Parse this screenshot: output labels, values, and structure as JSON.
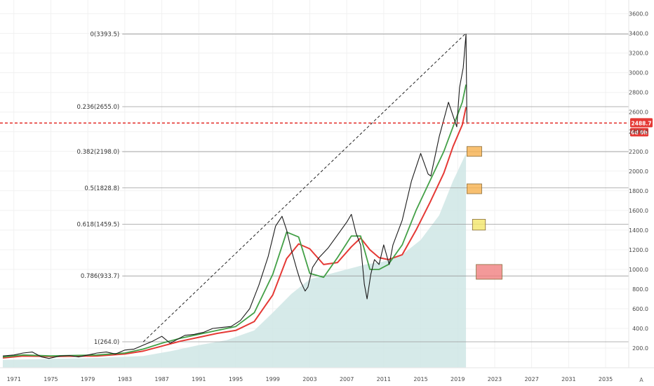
{
  "chart_data": {
    "type": "line",
    "x_axis": {
      "ticks": [
        "1971",
        "1975",
        "1979",
        "1983",
        "1987",
        "1991",
        "1995",
        "1999",
        "2003",
        "2007",
        "2011",
        "2015",
        "2019",
        "2023",
        "2027",
        "2031",
        "2035"
      ],
      "range": [
        1969.5,
        2037.5
      ]
    },
    "y_axis": {
      "ticks": [
        200.0,
        400.0,
        600.0,
        800.0,
        1000.0,
        1200.0,
        1400.0,
        1600.0,
        1800.0,
        2000.0,
        2200.0,
        2400.0,
        2600.0,
        2800.0,
        3000.0,
        3200.0,
        3400.0,
        3600.0
      ],
      "tick_labels": [
        "200.0",
        "400.0",
        "600.0",
        "800.0",
        "1000.0",
        "1200.0",
        "1400.0",
        "1600.0",
        "1800.0",
        "2000.0",
        "2200.0",
        "2400.0",
        "2600.0",
        "2800.0",
        "3000.0",
        "3200.0",
        "3400.0",
        "3600.0"
      ],
      "range": [
        0,
        3740
      ],
      "position": "right",
      "corner_label": "A"
    },
    "grid": true,
    "current_price": {
      "value": 2488.7,
      "label": "2488.7",
      "countdown": "6d 0h",
      "color": "#e53935"
    },
    "fib_levels": [
      {
        "ratio": "0",
        "value": 3393.5,
        "label": "0(3393.5)"
      },
      {
        "ratio": "0.236",
        "value": 2655.0,
        "label": "0.236(2655.0)"
      },
      {
        "ratio": "0.382",
        "value": 2198.0,
        "label": "0.382(2198.0)"
      },
      {
        "ratio": "0.5",
        "value": 1828.8,
        "label": "0.5(1828.8)"
      },
      {
        "ratio": "0.618",
        "value": 1459.5,
        "label": "0.618(1459.5)"
      },
      {
        "ratio": "0.786",
        "value": 933.7,
        "label": "0.786(933.7)"
      },
      {
        "ratio": "1",
        "value": 264.0,
        "label": "1(264.0)"
      }
    ],
    "trendline": {
      "x": [
        1985.0,
        2019.8
      ],
      "y": [
        264.0,
        3393.5
      ]
    },
    "zones": [
      {
        "x": [
          2020.0,
          2021.6
        ],
        "y": [
          2150,
          2250
        ],
        "color": "#f6b04d"
      },
      {
        "x": [
          2020.0,
          2021.6
        ],
        "y": [
          1770,
          1870
        ],
        "color": "#f6b04d"
      },
      {
        "x": [
          2020.6,
          2022.0
        ],
        "y": [
          1400,
          1510
        ],
        "color": "#f3e66a"
      },
      {
        "x": [
          2021.0,
          2023.8
        ],
        "y": [
          900,
          1050
        ],
        "color": "#f08080"
      }
    ],
    "series": [
      {
        "kind": "price",
        "color": "#1a1a1a",
        "x": [
          1969.8,
          1971.0,
          1972.0,
          1973.0,
          1974.0,
          1974.8,
          1976.0,
          1977.0,
          1978.0,
          1979.0,
          1980.0,
          1981.0,
          1982.0,
          1983.0,
          1984.0,
          1985.0,
          1986.0,
          1987.0,
          1987.9,
          1988.5,
          1989.5,
          1990.5,
          1991.5,
          1992.5,
          1993.5,
          1994.5,
          1995.5,
          1996.5,
          1997.5,
          1998.5,
          1999.3,
          2000.0,
          2000.5,
          2001.0,
          2001.6,
          2002.0,
          2002.5,
          2002.8,
          2003.3,
          2004.0,
          2005.0,
          2006.0,
          2007.0,
          2007.5,
          2008.0,
          2008.5,
          2008.9,
          2009.2,
          2009.6,
          2010.0,
          2010.5,
          2011.0,
          2011.6,
          2012.0,
          2013.0,
          2014.0,
          2015.0,
          2015.8,
          2016.1,
          2017.0,
          2018.0,
          2018.9,
          2019.2,
          2019.6,
          2019.9,
          2020.0
        ],
        "y": [
          120,
          130,
          150,
          160,
          110,
          95,
          120,
          125,
          110,
          130,
          150,
          160,
          140,
          180,
          190,
          230,
          270,
          320,
          250,
          280,
          330,
          340,
          360,
          400,
          410,
          420,
          480,
          600,
          840,
          1130,
          1440,
          1540,
          1400,
          1200,
          1000,
          880,
          780,
          820,
          1020,
          1120,
          1220,
          1350,
          1480,
          1560,
          1370,
          1250,
          850,
          700,
          950,
          1100,
          1050,
          1250,
          1050,
          1250,
          1500,
          1900,
          2180,
          1970,
          1950,
          2350,
          2700,
          2450,
          2850,
          3050,
          3393,
          2480
        ]
      },
      {
        "kind": "ma_fast",
        "color": "#43a047",
        "x": [
          1969.8,
          1972.0,
          1975.0,
          1980.0,
          1983.0,
          1985.0,
          1987.0,
          1989.0,
          1991.0,
          1993.0,
          1995.0,
          1997.0,
          1999.0,
          2000.5,
          2001.8,
          2003.0,
          2004.5,
          2006.0,
          2007.5,
          2008.5,
          2009.5,
          2010.5,
          2011.5,
          2013.0,
          2014.5,
          2016.0,
          2017.5,
          2018.5,
          2019.5,
          2019.9
        ],
        "y": [
          110,
          130,
          120,
          130,
          150,
          190,
          250,
          300,
          340,
          380,
          420,
          560,
          950,
          1380,
          1330,
          960,
          920,
          1120,
          1340,
          1340,
          1000,
          1000,
          1050,
          1250,
          1600,
          1900,
          2200,
          2450,
          2700,
          2880
        ]
      },
      {
        "kind": "ma_slow",
        "color": "#e53935",
        "x": [
          1969.8,
          1972.0,
          1975.0,
          1980.0,
          1983.0,
          1985.0,
          1987.0,
          1989.0,
          1991.0,
          1993.0,
          1995.0,
          1997.0,
          1999.0,
          2000.5,
          2001.8,
          2003.0,
          2004.5,
          2006.0,
          2007.5,
          2008.5,
          2009.5,
          2010.5,
          2011.5,
          2013.0,
          2014.5,
          2016.0,
          2017.5,
          2018.5,
          2019.5,
          2019.9
        ],
        "y": [
          100,
          120,
          115,
          120,
          140,
          170,
          220,
          270,
          310,
          350,
          380,
          470,
          740,
          1110,
          1260,
          1210,
          1050,
          1070,
          1230,
          1320,
          1200,
          1120,
          1100,
          1150,
          1400,
          1680,
          1980,
          2250,
          2470,
          2650
        ]
      },
      {
        "kind": "area",
        "color": "#cfe6e5",
        "x": [
          1969.8,
          1975.0,
          1980.0,
          1985.0,
          1988.0,
          1991.0,
          1994.0,
          1997.0,
          1999.0,
          2001.0,
          2003.0,
          2005.0,
          2007.0,
          2009.0,
          2011.0,
          2013.0,
          2015.0,
          2017.0,
          2018.5,
          2019.9
        ],
        "y": [
          80,
          90,
          100,
          120,
          170,
          230,
          280,
          380,
          560,
          750,
          900,
          950,
          1000,
          1050,
          1080,
          1150,
          1300,
          1550,
          1900,
          2180
        ]
      }
    ]
  }
}
